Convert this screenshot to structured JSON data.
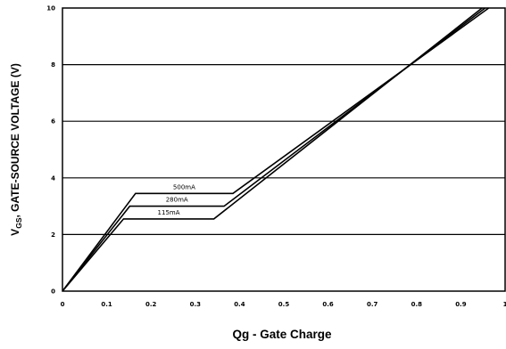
{
  "chart_data": {
    "type": "line",
    "title": "",
    "xlabel": "Qg - Gate Charge",
    "ylabel": {
      "main": "V",
      "sub": "GS",
      "rest": ", GATE-SOURCE VOLTAGE (V)"
    },
    "xlim": [
      0,
      1
    ],
    "ylim": [
      0,
      10
    ],
    "x_ticks": [
      0,
      0.1,
      0.2,
      0.3,
      0.4,
      0.5,
      0.6,
      0.7,
      0.8,
      0.9,
      1
    ],
    "x_tick_labels": [
      "0",
      "0.1",
      "0.2",
      "0.3",
      "0.4",
      "0.5",
      "0.6",
      "0.7",
      "0.8",
      "0.9",
      "1"
    ],
    "y_ticks": [
      0,
      2,
      4,
      6,
      8,
      10
    ],
    "y_tick_labels": [
      "0",
      "2",
      "4",
      "6",
      "8",
      "10"
    ],
    "grid": "horizontal",
    "legend": "none",
    "series": [
      {
        "name": "500mA",
        "x": [
          0,
          0.165,
          0.385,
          0.963
        ],
        "y": [
          0,
          3.45,
          3.45,
          10
        ]
      },
      {
        "name": "280mA",
        "x": [
          0,
          0.152,
          0.365,
          0.955
        ],
        "y": [
          0,
          3.0,
          3.0,
          10
        ]
      },
      {
        "name": "115mA",
        "x": [
          0,
          0.138,
          0.342,
          0.948
        ],
        "y": [
          0,
          2.55,
          2.55,
          10
        ]
      }
    ],
    "line_color": "#000000"
  }
}
